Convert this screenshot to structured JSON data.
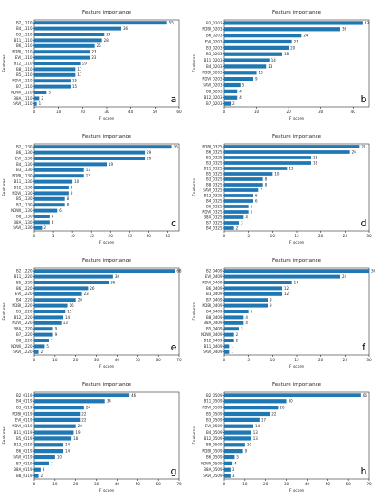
{
  "colors": {
    "bar": "#1f77b4",
    "axis": "#000000",
    "text": "#222222"
  },
  "chart_data": [
    {
      "panel": "a",
      "type": "bar",
      "orientation": "horizontal",
      "title": "Feature importance",
      "xlabel": "F score",
      "ylabel": "Features",
      "xlim": [
        0,
        60
      ],
      "xticks": [
        0,
        10,
        20,
        30,
        40,
        50,
        60
      ],
      "categories": [
        "B2_1110",
        "B4_1110",
        "B3_1110",
        "B11_1110",
        "B6_1110",
        "NDBI_1110",
        "EVI_1110",
        "B12_1110",
        "B8_1110",
        "B5_1110",
        "NDVI_1110",
        "B7_1110",
        "NDWI_1110",
        "B8A_1110",
        "SAVI_1110"
      ],
      "values": [
        55,
        36,
        29,
        28,
        25,
        23,
        23,
        19,
        17,
        17,
        15,
        15,
        5,
        2,
        1
      ]
    },
    {
      "panel": "b",
      "type": "bar",
      "orientation": "horizontal",
      "title": "Feature importance",
      "xlabel": "F score",
      "ylabel": "Features",
      "xlim": [
        0,
        45
      ],
      "xticks": [
        0,
        10,
        20,
        30,
        40
      ],
      "categories": [
        "B2_0203",
        "NDBI_0203",
        "B6_0203",
        "EVI_0203",
        "B3_0203",
        "B5_0203",
        "B11_0203",
        "B4_0203",
        "NDBI_0203",
        "NDVI_0203",
        "SAVI_0203",
        "B8_0203",
        "B12_0203",
        "B7_0203"
      ],
      "values": [
        43,
        36,
        24,
        21,
        20,
        18,
        14,
        13,
        10,
        9,
        5,
        4,
        4,
        2
      ]
    },
    {
      "panel": "c",
      "type": "bar",
      "orientation": "horizontal",
      "title": "Feature importance",
      "xlabel": "F score",
      "ylabel": "Features",
      "xlim": [
        0,
        38
      ],
      "xticks": [
        0,
        5,
        10,
        15,
        20,
        25,
        30,
        35
      ],
      "categories": [
        "B2_1130",
        "B6_1130",
        "EVI_1130",
        "B4_1130",
        "B3_1130",
        "NDBI_1130",
        "B11_1130",
        "B12_1130",
        "NDVI_1130",
        "B5_1130",
        "B7_1130",
        "NDWI_1130",
        "B8_1130",
        "B8A_1130",
        "SAVI_1130"
      ],
      "values": [
        36,
        29,
        29,
        19,
        13,
        13,
        10,
        9,
        9,
        8,
        8,
        6,
        4,
        4,
        2
      ]
    },
    {
      "panel": "d",
      "type": "bar",
      "orientation": "horizontal",
      "title": "Feature importance",
      "xlabel": "F score",
      "ylabel": "Features",
      "xlim": [
        0,
        30
      ],
      "xticks": [
        0,
        5,
        10,
        15,
        20,
        25,
        30
      ],
      "categories": [
        "NDBI_0325",
        "B6_0325",
        "B2_0325",
        "B3_0325",
        "B11_0325",
        "B5_0325",
        "B3_0325",
        "B8_0325",
        "SAVI_0325",
        "B12_0325",
        "B4_0325",
        "B6_0325",
        "NDVI_0325",
        "B8A_0325",
        "B7_0325",
        "B4_0325"
      ],
      "values": [
        28,
        26,
        18,
        18,
        13,
        10,
        8,
        8,
        7,
        6,
        6,
        5,
        5,
        4,
        3,
        2
      ]
    },
    {
      "panel": "e",
      "type": "bar",
      "orientation": "horizontal",
      "title": "Feature importance",
      "xlabel": "F score",
      "ylabel": "Features",
      "xlim": [
        0,
        70
      ],
      "xticks": [
        0,
        10,
        20,
        30,
        40,
        50,
        60,
        70
      ],
      "categories": [
        "B2_1220",
        "B11_1220",
        "B5_1220",
        "B6_1220",
        "EVI_1220",
        "B4_1220",
        "NDBI_1220",
        "B3_1220",
        "B12_1220",
        "NDVI_1220",
        "B8A_1220",
        "B7_1220",
        "B8_1220",
        "NDWI_1220",
        "SAVI_1220"
      ],
      "values": [
        68,
        38,
        36,
        26,
        23,
        20,
        16,
        15,
        14,
        13,
        9,
        9,
        7,
        5,
        2
      ]
    },
    {
      "panel": "f",
      "type": "bar",
      "orientation": "horizontal",
      "title": "Feature importance",
      "xlabel": "F score",
      "ylabel": "Features",
      "xlim": [
        0,
        30
      ],
      "xticks": [
        0,
        5,
        10,
        15,
        20,
        25,
        30
      ],
      "categories": [
        "B2_0409",
        "EVI_0409",
        "NDVI_0409",
        "B6_0409",
        "B3_0409",
        "B7_0409",
        "NDBI_0409",
        "B4_0409",
        "B8_0409",
        "B8A_0409",
        "B5_0409",
        "NDWI_0409",
        "B12_0409",
        "B11_0409",
        "SAVI_0409"
      ],
      "values": [
        30,
        24,
        14,
        12,
        12,
        9,
        9,
        5,
        4,
        4,
        3,
        2,
        2,
        1,
        1
      ]
    },
    {
      "panel": "g",
      "type": "bar",
      "orientation": "horizontal",
      "title": "Feature importance",
      "xlabel": "F score",
      "ylabel": "Features",
      "xlim": [
        0,
        70
      ],
      "xticks": [
        0,
        10,
        20,
        30,
        40,
        50,
        60,
        70
      ],
      "categories": [
        "B2_0119",
        "B4_0119",
        "B3_0119",
        "NDBI_0119",
        "EVI_0119",
        "NDVI_0119",
        "B11_0119",
        "B5_0119",
        "B12_0119",
        "B6_0119",
        "SAVI_0119",
        "B7_0119",
        "B8A_0119",
        "B8_0119"
      ],
      "values": [
        46,
        34,
        24,
        22,
        22,
        20,
        19,
        18,
        14,
        14,
        10,
        7,
        3,
        2
      ]
    },
    {
      "panel": "h",
      "type": "bar",
      "orientation": "horizontal",
      "title": "Feature importance",
      "xlabel": "F score",
      "ylabel": "Features",
      "xlim": [
        0,
        70
      ],
      "xticks": [
        0,
        10,
        20,
        30,
        40,
        50,
        60,
        70
      ],
      "categories": [
        "B2_0509",
        "B11_0509",
        "NDVI_0509",
        "B5_0509",
        "B3_0509",
        "EVI_0509",
        "B4_0509",
        "B12_0509",
        "B8_0509",
        "NDBI_0509",
        "B6_0509",
        "NDWI_0509",
        "B8A_0509",
        "SAVI_0509"
      ],
      "values": [
        66,
        30,
        26,
        22,
        17,
        14,
        13,
        13,
        10,
        9,
        5,
        4,
        3,
        3
      ]
    }
  ]
}
